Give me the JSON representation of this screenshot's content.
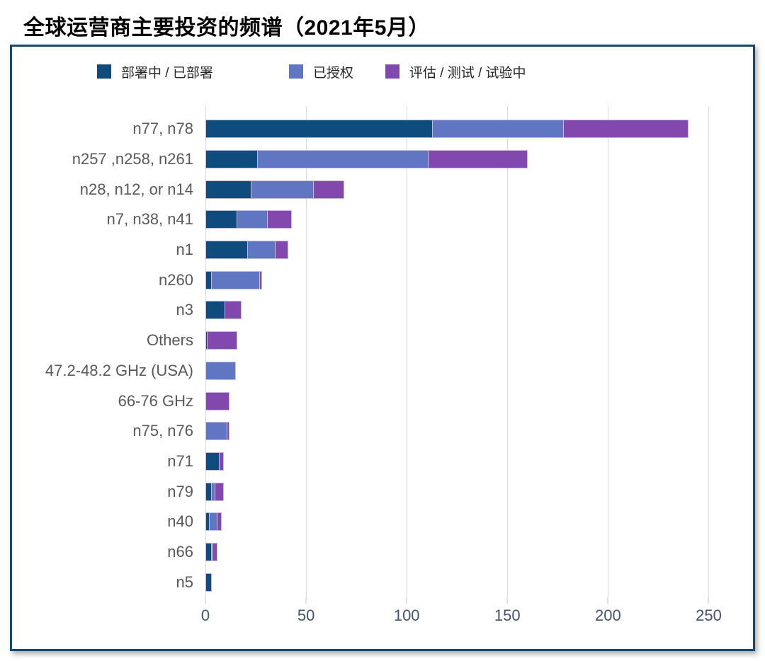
{
  "title": "全球运营商主要投资的频谱（2021年5月）",
  "legend": [
    {
      "label": "部署中 / 已部署",
      "color": "#0f4c7d"
    },
    {
      "label": "已授权",
      "color": "#6176c2"
    },
    {
      "label": "评估 / 测试 / 试验中",
      "color": "#8348ae"
    }
  ],
  "colors": {
    "deployed": "#0f4c7d",
    "licensed": "#6176c2",
    "trial": "#8348ae",
    "gridline": "#d9d9d9",
    "frame_border": "#15476f",
    "axis_text": "#44546a",
    "category_text": "#595959"
  },
  "chart_data": {
    "type": "bar",
    "orientation": "horizontal",
    "stacked": true,
    "title": "全球运营商主要投资的频谱（2021年5月）",
    "legend_position": "top",
    "grid": "vertical",
    "xlim": [
      0,
      250
    ],
    "xticks": [
      0,
      50,
      100,
      150,
      200,
      250
    ],
    "categories": [
      "n77, n78",
      "n257 ,n258, n261",
      "n28, n12, or n14",
      "n7, n38, n41",
      "n1",
      "n260",
      "n3",
      "Others",
      "47.2-48.2 GHz (USA)",
      "66-76 GHz",
      "n75, n76",
      "n71",
      "n79",
      "n40",
      "n66",
      "n5"
    ],
    "series": [
      {
        "name": "部署中 / 已部署",
        "color": "#0f4c7d",
        "values": [
          113,
          26,
          23,
          16,
          21,
          3,
          10,
          1,
          0,
          0,
          0,
          7,
          3,
          2,
          3,
          3
        ]
      },
      {
        "name": "已授权",
        "color": "#6176c2",
        "values": [
          65,
          85,
          31,
          15,
          14,
          24,
          0,
          0,
          15,
          0,
          11,
          0,
          2,
          4,
          1,
          0
        ]
      },
      {
        "name": "评估 / 测试 / 试验中",
        "color": "#8348ae",
        "values": [
          62,
          49,
          15,
          12,
          6,
          1,
          8,
          15,
          0,
          12,
          1,
          2,
          4,
          2,
          2,
          0
        ]
      }
    ],
    "totals": [
      240,
      160,
      69,
      43,
      41,
      28,
      18,
      16,
      15,
      12,
      12,
      9,
      9,
      8,
      6,
      3
    ]
  }
}
